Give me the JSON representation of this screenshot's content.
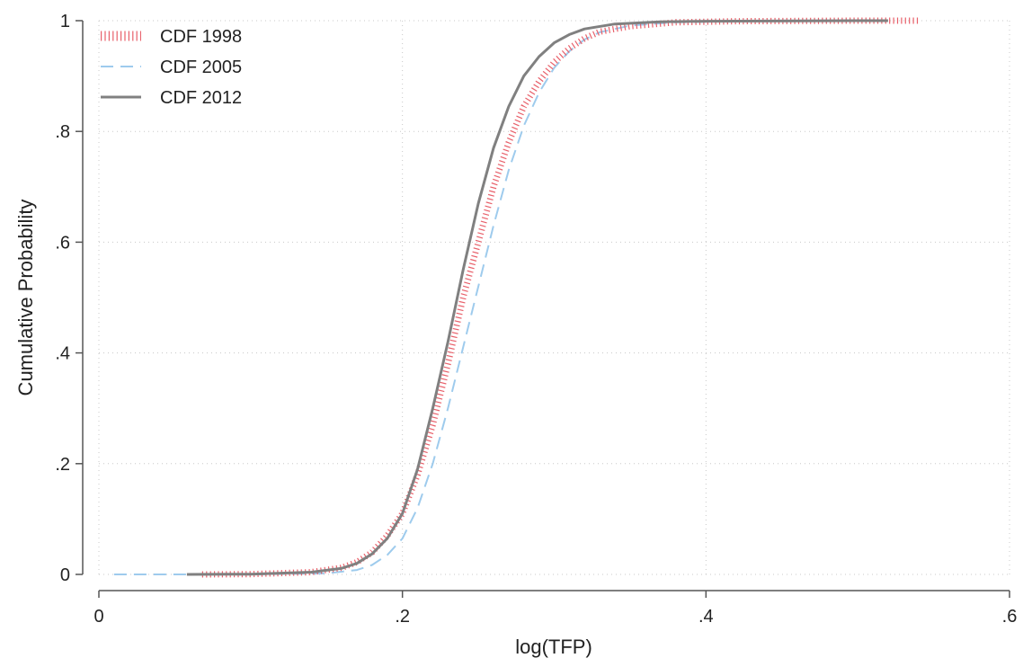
{
  "chart_data": {
    "type": "line",
    "xlabel": "log(TFP)",
    "ylabel": "Cumulative Probability",
    "xlim": [
      0,
      0.6
    ],
    "ylim": [
      0,
      1
    ],
    "x_ticks": [
      0,
      0.2,
      0.4,
      0.6
    ],
    "x_tick_labels": [
      "0",
      ".2",
      ".4",
      ".6"
    ],
    "y_ticks": [
      0,
      0.2,
      0.4,
      0.6,
      0.8,
      1
    ],
    "y_tick_labels": [
      "0",
      ".2",
      ".4",
      ".6",
      ".8",
      "1"
    ],
    "grid": true,
    "legend_position": "top-left",
    "series": [
      {
        "name": "CDF 1998",
        "color": "#e8606a",
        "style": "dense-dotted",
        "points": [
          [
            0.068,
            0
          ],
          [
            0.1,
            0.0005
          ],
          [
            0.14,
            0.004
          ],
          [
            0.16,
            0.012
          ],
          [
            0.17,
            0.022
          ],
          [
            0.18,
            0.04
          ],
          [
            0.19,
            0.07
          ],
          [
            0.2,
            0.11
          ],
          [
            0.21,
            0.18
          ],
          [
            0.22,
            0.27
          ],
          [
            0.23,
            0.38
          ],
          [
            0.24,
            0.5
          ],
          [
            0.25,
            0.6
          ],
          [
            0.26,
            0.7
          ],
          [
            0.27,
            0.78
          ],
          [
            0.28,
            0.845
          ],
          [
            0.29,
            0.89
          ],
          [
            0.3,
            0.925
          ],
          [
            0.31,
            0.95
          ],
          [
            0.32,
            0.968
          ],
          [
            0.33,
            0.98
          ],
          [
            0.35,
            0.99
          ],
          [
            0.38,
            0.997
          ],
          [
            0.42,
            0.999
          ],
          [
            0.5,
            1
          ],
          [
            0.54,
            1
          ]
        ]
      },
      {
        "name": "CDF 2005",
        "color": "#9ecbed",
        "style": "dashed",
        "points": [
          [
            0.01,
            0
          ],
          [
            0.1,
            0.0002
          ],
          [
            0.15,
            0.002
          ],
          [
            0.17,
            0.008
          ],
          [
            0.18,
            0.017
          ],
          [
            0.19,
            0.035
          ],
          [
            0.2,
            0.065
          ],
          [
            0.21,
            0.12
          ],
          [
            0.22,
            0.2
          ],
          [
            0.23,
            0.3
          ],
          [
            0.24,
            0.41
          ],
          [
            0.25,
            0.52
          ],
          [
            0.26,
            0.63
          ],
          [
            0.27,
            0.73
          ],
          [
            0.28,
            0.81
          ],
          [
            0.29,
            0.87
          ],
          [
            0.3,
            0.915
          ],
          [
            0.31,
            0.945
          ],
          [
            0.32,
            0.966
          ],
          [
            0.33,
            0.979
          ],
          [
            0.35,
            0.991
          ],
          [
            0.38,
            0.997
          ],
          [
            0.42,
            0.999
          ],
          [
            0.5,
            1
          ],
          [
            0.52,
            1
          ]
        ]
      },
      {
        "name": "CDF 2012",
        "color": "#808080",
        "style": "solid",
        "points": [
          [
            0.058,
            0
          ],
          [
            0.1,
            0.0005
          ],
          [
            0.14,
            0.004
          ],
          [
            0.16,
            0.011
          ],
          [
            0.17,
            0.02
          ],
          [
            0.18,
            0.037
          ],
          [
            0.19,
            0.065
          ],
          [
            0.2,
            0.11
          ],
          [
            0.21,
            0.19
          ],
          [
            0.22,
            0.3
          ],
          [
            0.23,
            0.42
          ],
          [
            0.24,
            0.55
          ],
          [
            0.25,
            0.67
          ],
          [
            0.26,
            0.77
          ],
          [
            0.27,
            0.845
          ],
          [
            0.28,
            0.9
          ],
          [
            0.29,
            0.935
          ],
          [
            0.3,
            0.96
          ],
          [
            0.31,
            0.975
          ],
          [
            0.32,
            0.985
          ],
          [
            0.34,
            0.994
          ],
          [
            0.37,
            0.998
          ],
          [
            0.4,
            0.999
          ],
          [
            0.5,
            1
          ],
          [
            0.52,
            1
          ]
        ]
      }
    ]
  }
}
